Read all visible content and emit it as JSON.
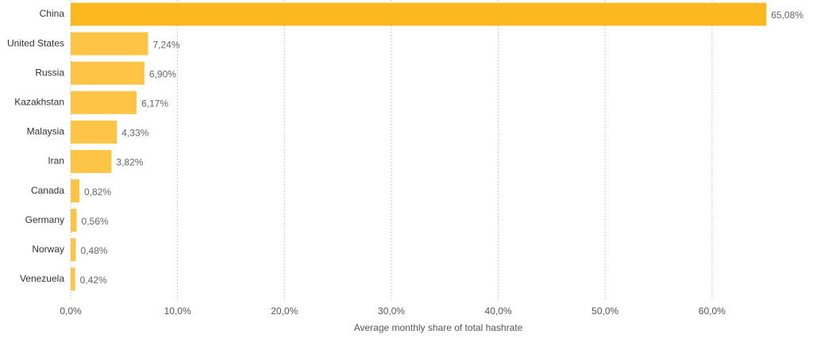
{
  "chart_data": {
    "type": "hbar",
    "x_label": "Average monthly share of total hashrate",
    "categories": [
      "China",
      "United States",
      "Russia",
      "Kazakhstan",
      "Malaysia",
      "Iran",
      "Canada",
      "Germany",
      "Norway",
      "Venezuela"
    ],
    "values": [
      65.08,
      7.24,
      6.9,
      6.17,
      4.33,
      3.82,
      0.82,
      0.56,
      0.48,
      0.42
    ],
    "value_labels": [
      "65,08%",
      "7,24%",
      "6,90%",
      "6,17%",
      "4,33%",
      "3,82%",
      "0,82%",
      "0,56%",
      "0,48%",
      "0,42%"
    ],
    "colors": [
      "#fcb81f",
      "#fdc446",
      "#fdc446",
      "#fdc446",
      "#fdc446",
      "#fdc446",
      "#fdc446",
      "#fdc446",
      "#fdc446",
      "#fdc446"
    ],
    "xlim": [
      0,
      69
    ],
    "xticks": [
      {
        "value": 0,
        "label": "0,0%"
      },
      {
        "value": 10,
        "label": "10,0%"
      },
      {
        "value": 20,
        "label": "20,0%"
      },
      {
        "value": 30,
        "label": "30,0%"
      },
      {
        "value": 40,
        "label": "40,0%"
      },
      {
        "value": 50,
        "label": "50,0%"
      },
      {
        "value": 60,
        "label": "60,0%"
      }
    ],
    "grid": true
  }
}
